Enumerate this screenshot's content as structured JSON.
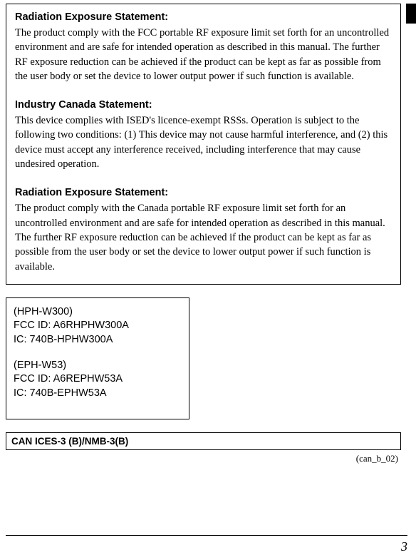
{
  "main": {
    "sections": [
      {
        "heading": "Radiation Exposure Statement:",
        "body": "The product comply with the FCC portable RF exposure limit set forth for an uncontrolled environment and are safe for intended operation as described in this manual. The further RF exposure reduction can be achieved if the product can be kept as far as possible from the user body or set the device to lower output power if such function is available."
      },
      {
        "heading": "Industry Canada Statement:",
        "body": "This device complies with ISED's licence-exempt RSSs. Operation is subject to the following two conditions: (1) This device may not cause harmful interference, and (2) this device must accept any interference received, including interference that may cause undesired operation."
      },
      {
        "heading": "Radiation Exposure Statement:",
        "body": "The product comply with the Canada portable RF exposure limit set forth for an uncontrolled environment and are safe for intended operation as described in this manual. The further RF exposure reduction can be achieved if the product can be kept as far as possible from the user body or set the device to lower output power if such function is available."
      }
    ]
  },
  "ids": {
    "groups": [
      {
        "model": "(HPH-W300)",
        "fcc": "FCC ID: A6RHPHW300A",
        "ic": "IC: 740B-HPHW300A"
      },
      {
        "model": "(EPH-W53)",
        "fcc": "FCC ID: A6REPHW53A",
        "ic": "IC: 740B-EPHW53A"
      }
    ]
  },
  "can_box": "CAN ICES-3 (B)/NMB-3(B)",
  "ref_code": "(can_b_02)",
  "page_number": "3",
  "colors": {
    "border": "#000000",
    "bg": "#ffffff",
    "text": "#000000"
  }
}
